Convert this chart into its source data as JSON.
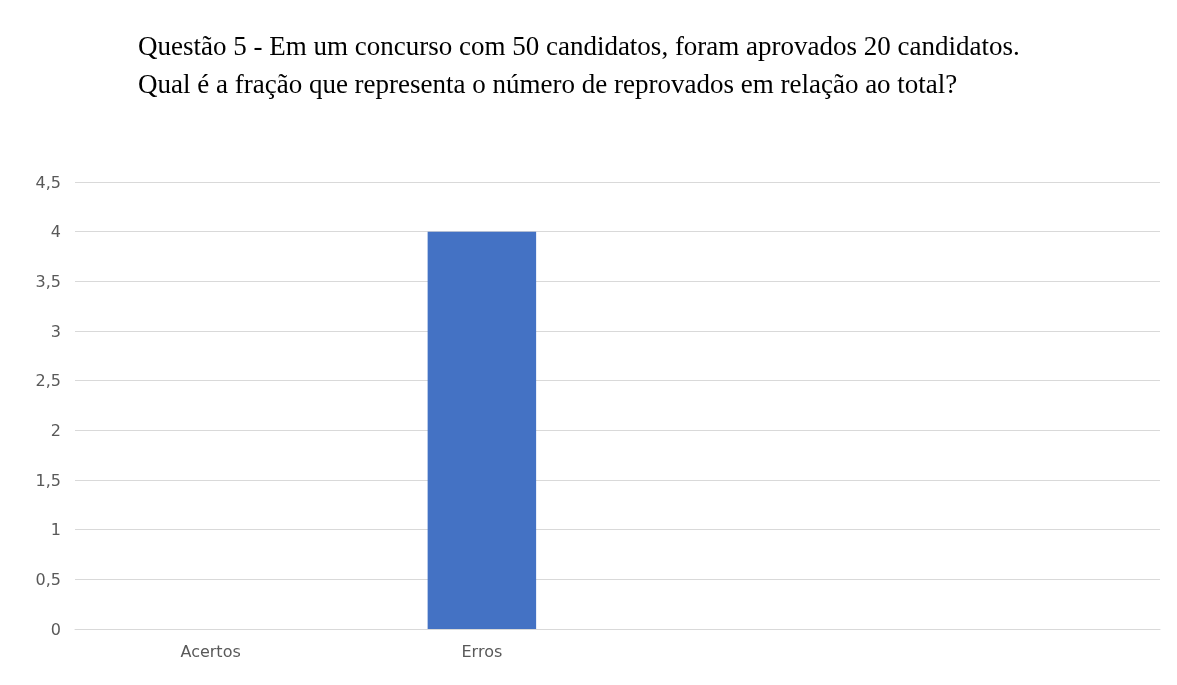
{
  "chart_data": {
    "type": "bar",
    "title": "Questão 5 - Em um concurso com 50 candidatos, foram aprovados 20 candidatos. Qual é a fração que representa o número de reprovados em relação ao total?",
    "categories": [
      "Acertos",
      "Erros",
      null,
      null
    ],
    "values": [
      0,
      4,
      null,
      null
    ],
    "color": "#4472c4",
    "ylim": [
      0,
      4.5
    ],
    "yticks": [
      0,
      {
        "value": 0.5,
        "label": "0,5"
      },
      1,
      {
        "value": 1.5,
        "label": "1,5"
      },
      2,
      {
        "value": 2.5,
        "label": "2,5"
      },
      3,
      {
        "value": 3.5,
        "label": "3,5"
      },
      4,
      {
        "value": 4.5,
        "label": "4,5"
      }
    ],
    "grid": "y"
  }
}
